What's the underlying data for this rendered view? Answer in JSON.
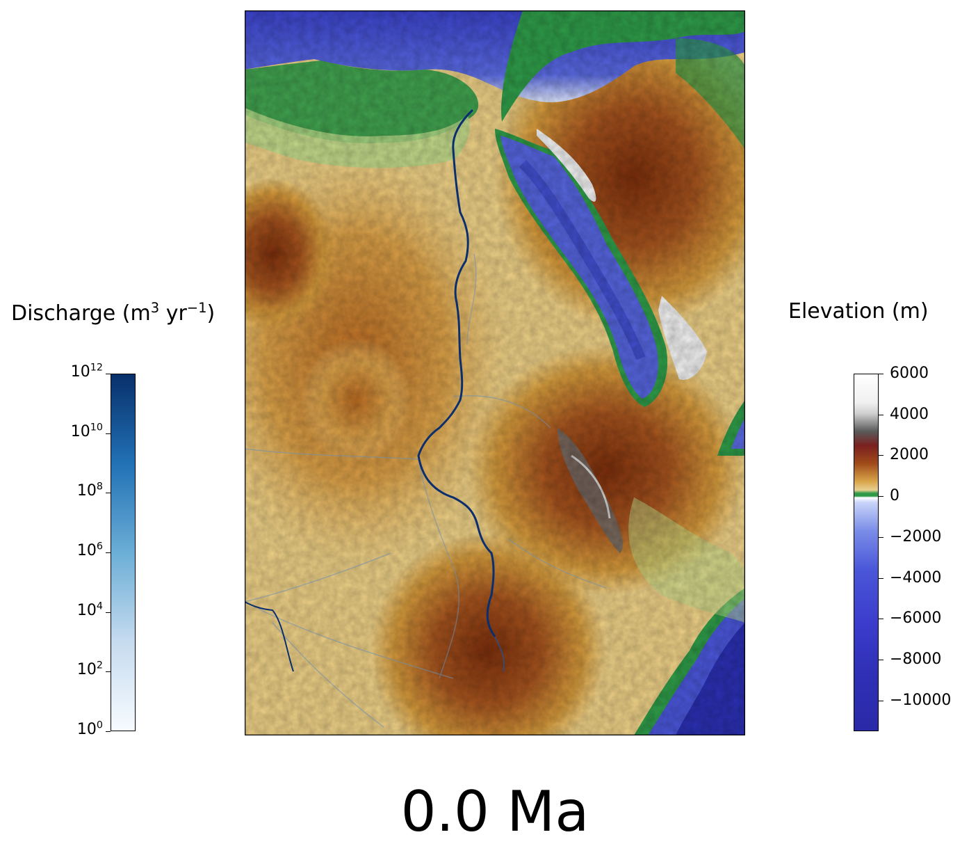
{
  "time_label": "0.0 Ma",
  "discharge_colorbar": {
    "title_prefix": "Discharge (m",
    "title_exp": "3",
    "title_mid": " yr",
    "title_exp2": "−1",
    "title_suffix": ")",
    "ticks": [
      {
        "base": "10",
        "exp": "12"
      },
      {
        "base": "10",
        "exp": "10"
      },
      {
        "base": "10",
        "exp": "8"
      },
      {
        "base": "10",
        "exp": "6"
      },
      {
        "base": "10",
        "exp": "4"
      },
      {
        "base": "10",
        "exp": "2"
      },
      {
        "base": "10",
        "exp": "0"
      }
    ],
    "colors": [
      "#f7fbff",
      "#c6dbef",
      "#6baed6",
      "#2171b5",
      "#08306b"
    ]
  },
  "elevation_colorbar": {
    "title": "Elevation (m)",
    "ticks": [
      "6000",
      "4000",
      "2000",
      "0",
      "−2000",
      "−4000",
      "−6000",
      "−8000",
      "−10000"
    ],
    "range": [
      -11500,
      6000
    ]
  },
  "map": {
    "colors": {
      "deep_ocean": "#2a2fb0",
      "ocean": "#4a56d8",
      "shallow": "#dde6fb",
      "coast_green": "#2e9a48",
      "lowland": "#f2dc96",
      "upland": "#d49a3c",
      "highland": "#8a3a12",
      "peak": "#e8e8e8",
      "river": "#0b2f6e"
    }
  }
}
